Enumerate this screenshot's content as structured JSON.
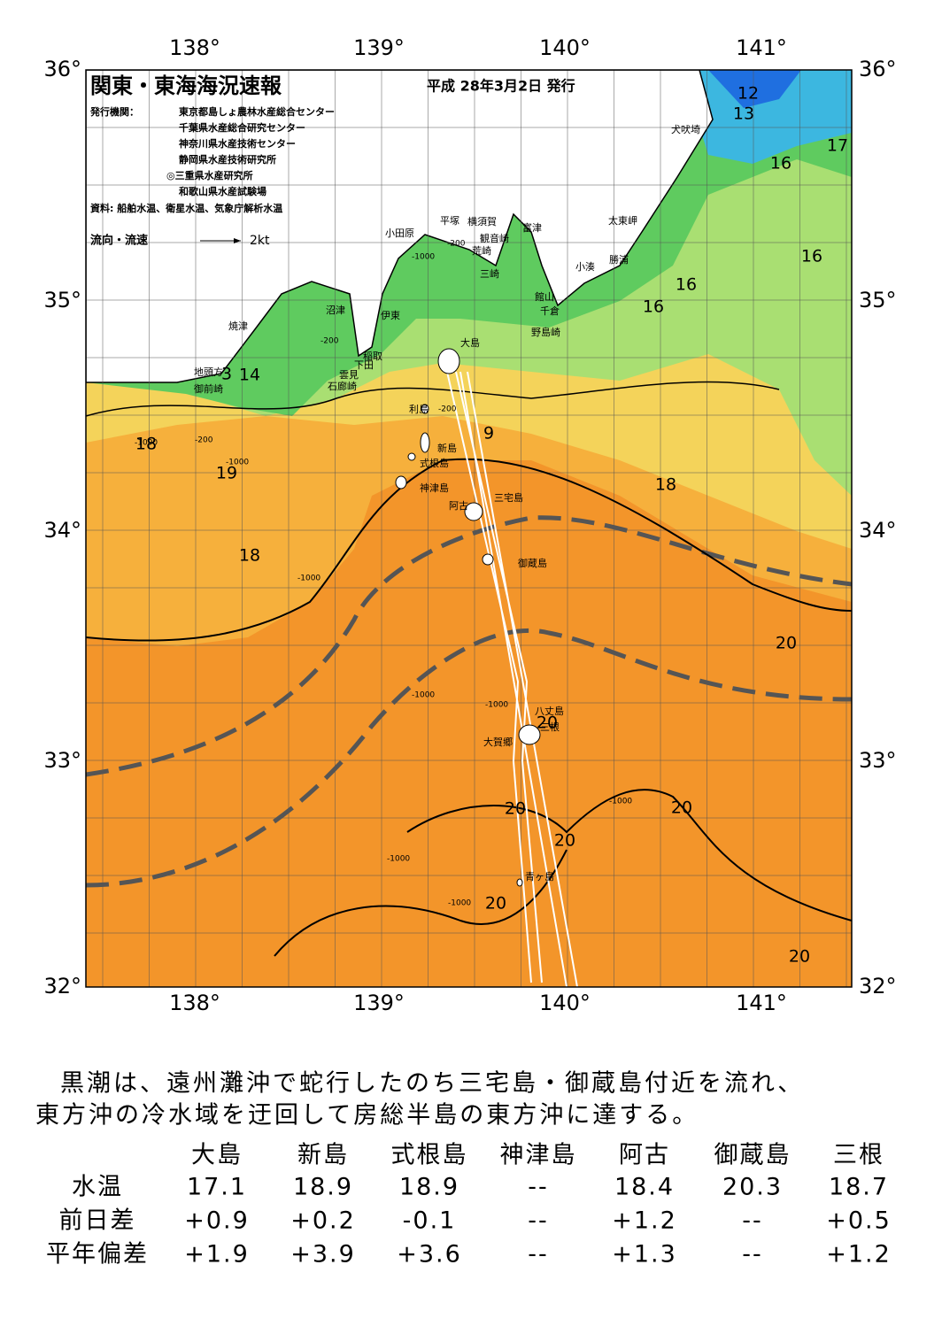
{
  "map": {
    "title": "関東・東海海況速報",
    "issue_date": "平成 28年3月2日 発行",
    "publisher_label": "発行機関：",
    "publishers": [
      "東京都島しょ農林水産総合センター",
      "千葉県水産総合研究センター",
      "神奈川県水産技術センター",
      "静岡県水産技術研究所",
      "◎三重県水産研究所",
      "和歌山県水産試験場"
    ],
    "source": "資料: 船舶水温、衛星水温、気象庁解析水温",
    "legend_label": "流向・流速",
    "legend_scale": "2kt",
    "lon_labels": [
      "138°",
      "139°",
      "140°",
      "141°"
    ],
    "lat_labels": [
      "36°",
      "35°",
      "34°",
      "33°",
      "32°"
    ],
    "places": [
      "犬吠埼",
      "太東岬",
      "勝浦",
      "小湊",
      "富津",
      "館山",
      "千倉",
      "野島崎",
      "横須賀",
      "観音崎",
      "荒崎",
      "三崎",
      "平塚",
      "小田原",
      "沼津",
      "伊東",
      "稲取",
      "下田",
      "雲見",
      "石廊崎",
      "焼津",
      "地頭方",
      "御前崎",
      "大島",
      "利島",
      "新島",
      "式根島",
      "神津島",
      "三宅島",
      "阿古",
      "御蔵島",
      "八丈島",
      "三根",
      "大賀郷",
      "青ヶ島"
    ],
    "isotherm_labels": [
      12,
      13,
      17,
      16,
      16,
      16,
      16,
      3,
      14,
      18,
      19,
      9,
      18,
      18,
      20,
      20,
      20,
      20,
      20,
      20,
      20
    ],
    "depth_labels": [
      "-200",
      "-200",
      "-1000",
      "-200",
      "-1000",
      "-200",
      "-1000",
      "-1000",
      "-1000",
      "-1000",
      "-1000",
      "-1000",
      "-1000"
    ]
  },
  "summary": [
    "黒潮は、遠州灘沖で蛇行したのち三宅島・御蔵島付近を流れ、",
    "東方沖の冷水域を迂回して房総半島の東方沖に達する。"
  ],
  "table": {
    "columns": [
      "大島",
      "新島",
      "式根島",
      "神津島",
      "阿古",
      "御蔵島",
      "三根"
    ],
    "rows": [
      {
        "label": "水温",
        "cells": [
          "17.1",
          "18.9",
          "18.9",
          "--",
          "18.4",
          "20.3",
          "18.7"
        ]
      },
      {
        "label": "前日差",
        "cells": [
          "+0.9",
          "+0.2",
          "-0.1",
          "--",
          "+1.2",
          "--",
          "+0.5"
        ]
      },
      {
        "label": "平年偏差",
        "cells": [
          "+1.9",
          "+3.9",
          "+3.6",
          "--",
          "+1.3",
          "--",
          "+1.2"
        ]
      }
    ]
  }
}
